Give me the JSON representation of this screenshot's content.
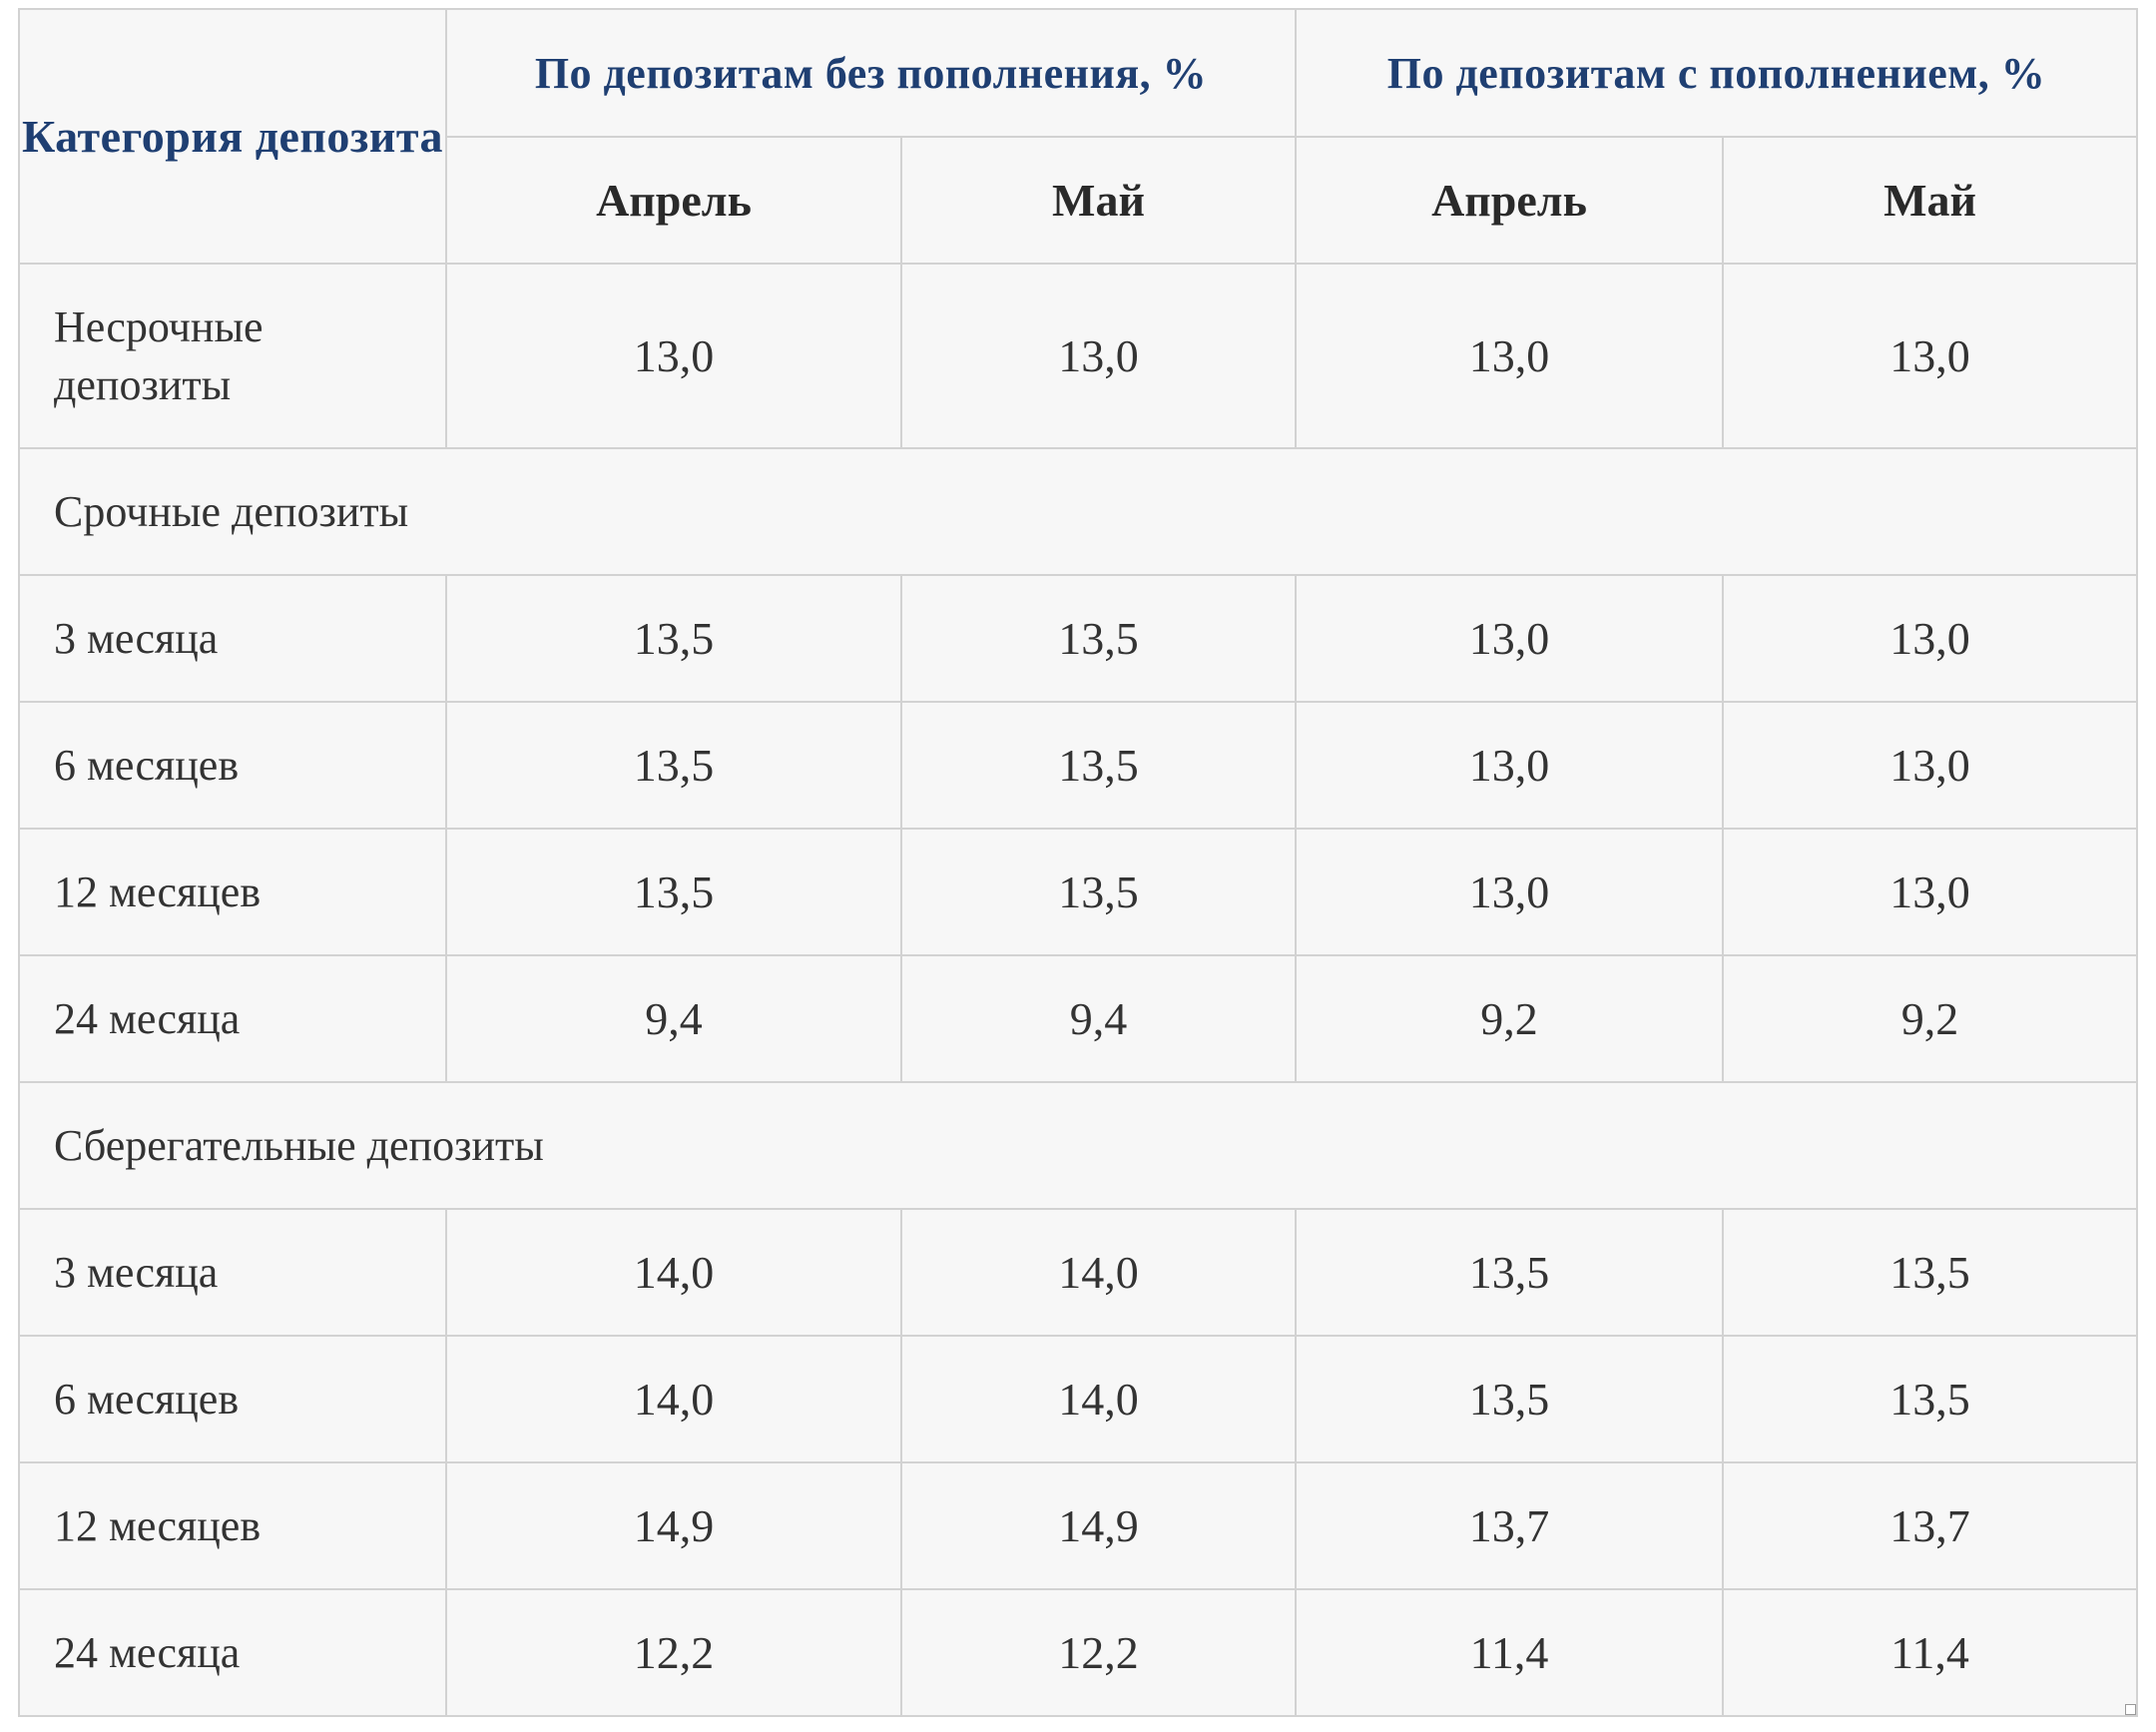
{
  "header": {
    "category": "Категория депозита",
    "group_without": "По депозитам без пополнения, %",
    "group_with": "По депозитам с пополнением, %",
    "months": [
      "Апрель",
      "Май",
      "Апрель",
      "Май"
    ]
  },
  "rows": [
    {
      "type": "data",
      "label": "Несрочные депозиты",
      "values": [
        "13,0",
        "13,0",
        "13,0",
        "13,0"
      ]
    },
    {
      "type": "section",
      "label": "Срочные депозиты"
    },
    {
      "type": "data",
      "label": "3 месяца",
      "values": [
        "13,5",
        "13,5",
        "13,0",
        "13,0"
      ]
    },
    {
      "type": "data",
      "label": "6 месяцев",
      "values": [
        "13,5",
        "13,5",
        "13,0",
        "13,0"
      ]
    },
    {
      "type": "data",
      "label": "12 месяцев",
      "values": [
        "13,5",
        "13,5",
        "13,0",
        "13,0"
      ]
    },
    {
      "type": "data",
      "label": "24 месяца",
      "values": [
        "9,4",
        "9,4",
        "9,2",
        "9,2"
      ]
    },
    {
      "type": "section",
      "label": "Сберегательные депозиты"
    },
    {
      "type": "data",
      "label": "3 месяца",
      "values": [
        "14,0",
        "14,0",
        "13,5",
        "13,5"
      ]
    },
    {
      "type": "data",
      "label": "6 месяцев",
      "values": [
        "14,0",
        "14,0",
        "13,5",
        "13,5"
      ]
    },
    {
      "type": "data",
      "label": "12 месяцев",
      "values": [
        "14,9",
        "14,9",
        "13,7",
        "13,7"
      ]
    },
    {
      "type": "data",
      "label": "24 месяца",
      "values": [
        "12,2",
        "12,2",
        "11,4",
        "11,4"
      ]
    }
  ]
}
